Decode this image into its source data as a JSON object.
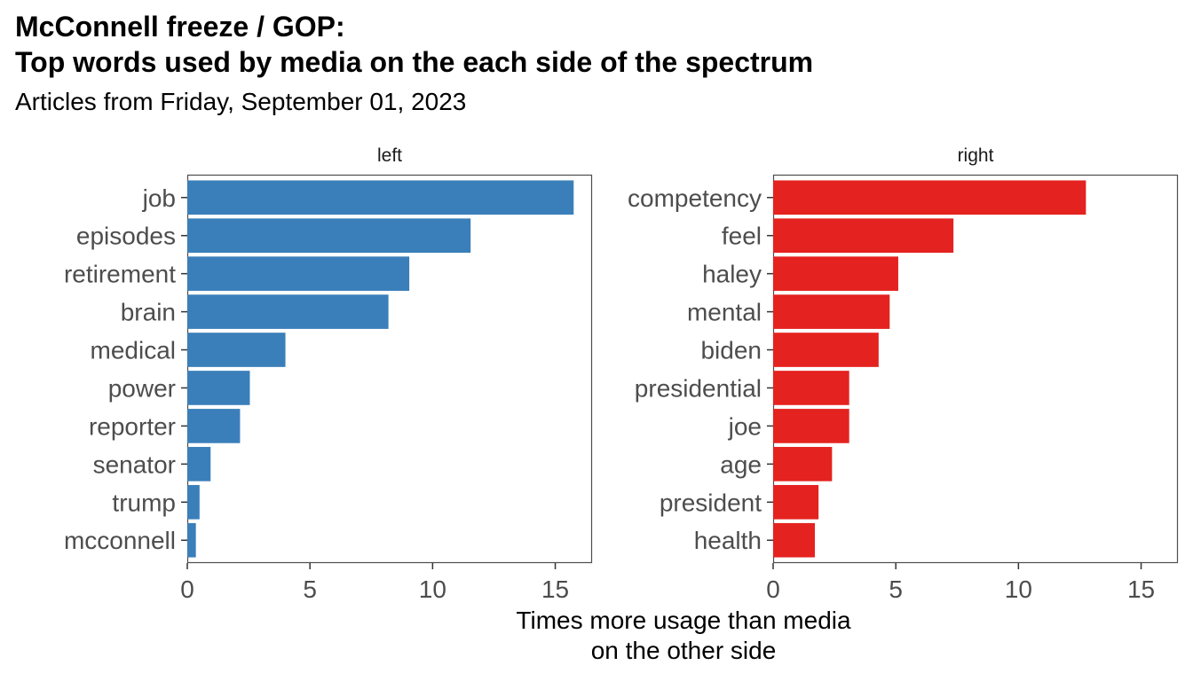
{
  "title_lines": [
    "McConnell freeze / GOP:",
    "Top words used by media on the each side of the spectrum"
  ],
  "subtitle": "Articles from Friday, September 01, 2023",
  "chart_data": {
    "type": "bar",
    "orientation": "horizontal",
    "title": "McConnell freeze / GOP: Top words used by media on the each side of the spectrum",
    "subtitle": "Articles from Friday, September 01, 2023",
    "xlabel_lines": [
      "Times more usage than media",
      "on the other side"
    ],
    "ylabel": "",
    "xlim": [
      0,
      16.5
    ],
    "xticks": [
      0,
      5,
      10,
      15
    ],
    "grid": false,
    "legend": "none",
    "facets": [
      {
        "name": "left",
        "color": "#3A7FBA",
        "categories": [
          "job",
          "episodes",
          "retirement",
          "brain",
          "medical",
          "power",
          "reporter",
          "senator",
          "trump",
          "mcconnell"
        ],
        "values": [
          15.75,
          11.55,
          9.05,
          8.2,
          4.0,
          2.55,
          2.15,
          0.95,
          0.5,
          0.35
        ]
      },
      {
        "name": "right",
        "color": "#E4221F",
        "categories": [
          "competency",
          "feel",
          "haley",
          "mental",
          "biden",
          "presidential",
          "joe",
          "age",
          "president",
          "health"
        ],
        "values": [
          12.75,
          7.35,
          5.1,
          4.75,
          4.3,
          3.1,
          3.1,
          2.4,
          1.85,
          1.7
        ]
      }
    ]
  }
}
